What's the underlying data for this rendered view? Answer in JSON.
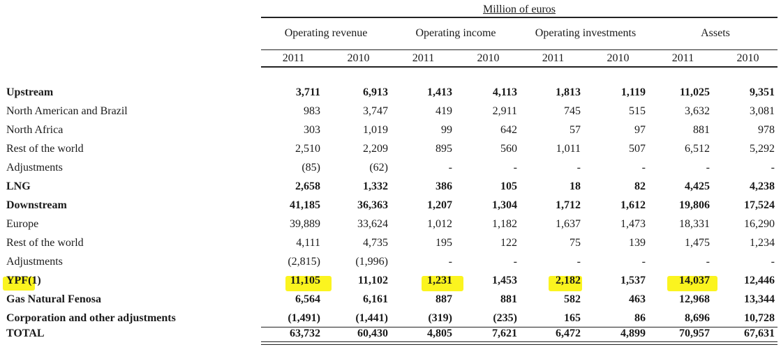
{
  "table": {
    "unit_caption": "Million of euros",
    "groups": [
      "Operating revenue",
      "Operating income",
      "Operating investments",
      "Assets"
    ],
    "years": [
      "2011",
      "2010",
      "2011",
      "2010",
      "2011",
      "2010",
      "2011",
      "2010"
    ],
    "rows": [
      {
        "label": "Upstream",
        "bold": true,
        "values": [
          "3,711",
          "6,913",
          "1,413",
          "4,113",
          "1,813",
          "1,119",
          "11,025",
          "9,351"
        ]
      },
      {
        "label": "North American and Brazil",
        "bold": false,
        "values": [
          "983",
          "3,747",
          "419",
          "2,911",
          "745",
          "515",
          "3,632",
          "3,081"
        ]
      },
      {
        "label": "North Africa",
        "bold": false,
        "values": [
          "303",
          "1,019",
          "99",
          "642",
          "57",
          "97",
          "881",
          "978"
        ]
      },
      {
        "label": "Rest of the world",
        "bold": false,
        "values": [
          "2,510",
          "2,209",
          "895",
          "560",
          "1,011",
          "507",
          "6,512",
          "5,292"
        ]
      },
      {
        "label": "Adjustments",
        "bold": false,
        "values": [
          "(85)",
          "(62)",
          "-",
          "-",
          "-",
          "-",
          "-",
          "-"
        ]
      },
      {
        "label": "LNG",
        "bold": true,
        "values": [
          "2,658",
          "1,332",
          "386",
          "105",
          "18",
          "82",
          "4,425",
          "4,238"
        ]
      },
      {
        "label": "Downstream",
        "bold": true,
        "values": [
          "41,185",
          "36,363",
          "1,207",
          "1,304",
          "1,712",
          "1,612",
          "19,806",
          "17,524"
        ]
      },
      {
        "label": "Europe",
        "bold": false,
        "values": [
          "39,889",
          "33,624",
          "1,012",
          "1,182",
          "1,637",
          "1,473",
          "18,331",
          "16,290"
        ]
      },
      {
        "label": "Rest of the world",
        "bold": false,
        "values": [
          "4,111",
          "4,735",
          "195",
          "122",
          "75",
          "139",
          "1,475",
          "1,234"
        ]
      },
      {
        "label": "Adjustments",
        "bold": false,
        "values": [
          "(2,815)",
          "(1,996)",
          "-",
          "-",
          "-",
          "-",
          "-",
          "-"
        ]
      },
      {
        "label": "YPF(1)",
        "bold": true,
        "values": [
          "11,105",
          "11,102",
          "1,231",
          "1,453",
          "2,182",
          "1,537",
          "14,037",
          "12,446"
        ]
      },
      {
        "label": "Gas Natural Fenosa",
        "bold": true,
        "values": [
          "6,564",
          "6,161",
          "887",
          "881",
          "582",
          "463",
          "12,968",
          "13,344"
        ]
      },
      {
        "label": "Corporation and other adjustments",
        "bold": true,
        "values": [
          "(1,491)",
          "(1,441)",
          "(319)",
          "(235)",
          "165",
          "86",
          "8,696",
          "10,728"
        ]
      },
      {
        "label": "TOTAL",
        "bold": true,
        "values": [
          "63,732",
          "60,430",
          "4,805",
          "7,621",
          "6,472",
          "4,899",
          "70,957",
          "67,631"
        ]
      }
    ],
    "highlight_color": "#fbf41f"
  }
}
